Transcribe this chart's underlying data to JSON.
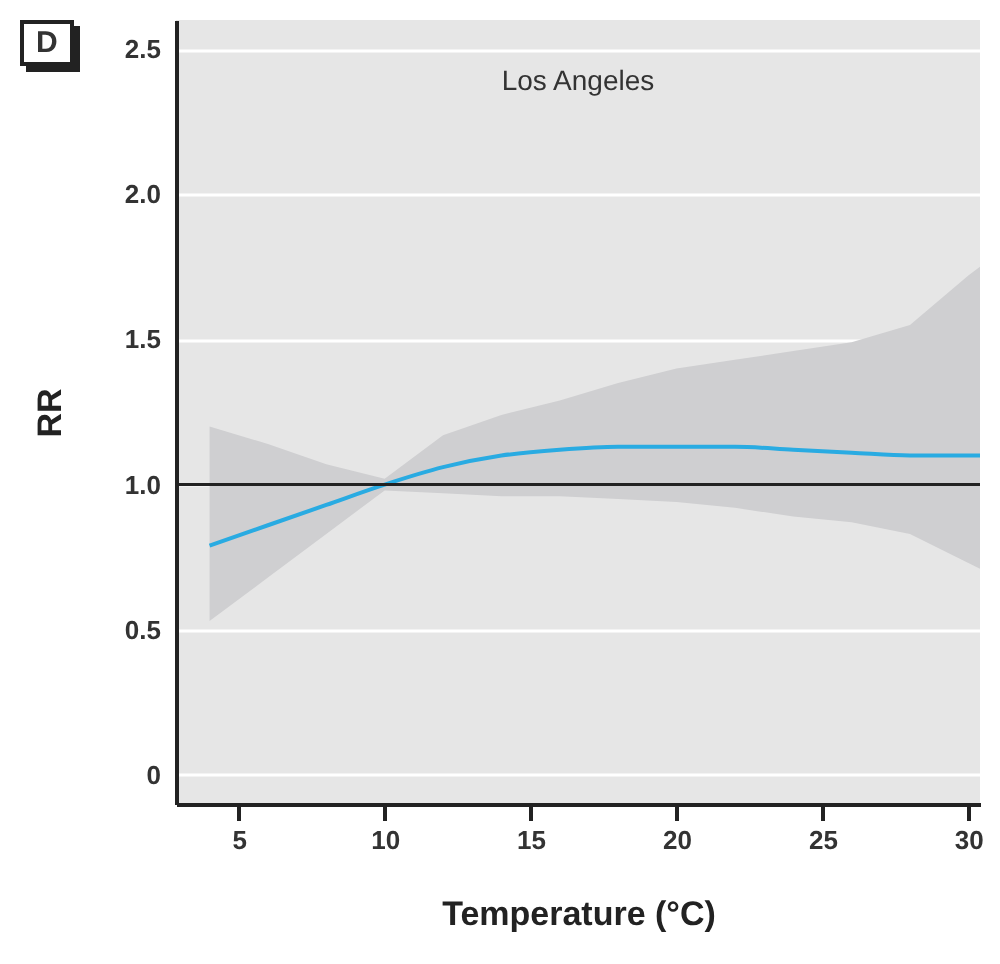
{
  "chart_data": {
    "type": "line",
    "title": "Los Angeles",
    "xlabel": "Temperature (°C)",
    "ylabel": "RR",
    "annotations": [
      "D"
    ],
    "x": [
      4,
      6,
      8,
      10,
      12,
      14,
      16,
      18,
      20,
      22,
      24,
      26,
      28,
      30,
      30.4
    ],
    "series": [
      {
        "color": "#29abe2",
        "values": [
          0.79,
          0.86,
          0.93,
          1.0,
          1.06,
          1.1,
          1.12,
          1.13,
          1.13,
          1.13,
          1.12,
          1.11,
          1.1,
          1.1,
          1.1
        ],
        "lower": [
          0.53,
          0.68,
          0.83,
          0.98,
          0.97,
          0.96,
          0.96,
          0.95,
          0.94,
          0.92,
          0.89,
          0.87,
          0.83,
          0.73,
          0.71
        ],
        "upper": [
          1.2,
          1.14,
          1.07,
          1.02,
          1.17,
          1.24,
          1.29,
          1.35,
          1.4,
          1.43,
          1.46,
          1.49,
          1.55,
          1.72,
          1.75
        ]
      }
    ],
    "xlim": [
      2.85,
      30.4
    ],
    "ylim": [
      -0.1,
      2.6
    ],
    "xticks": [
      5,
      10,
      15,
      20,
      25,
      30
    ],
    "yticks": [
      0,
      0.5,
      {
        "value": 1,
        "label": "1.0"
      },
      1.5,
      {
        "value": 2,
        "label": "2.0"
      },
      2.5
    ],
    "grid": "y",
    "ref_lines": [
      {
        "axis": "y",
        "value": 1,
        "color": "#222222"
      }
    ]
  }
}
